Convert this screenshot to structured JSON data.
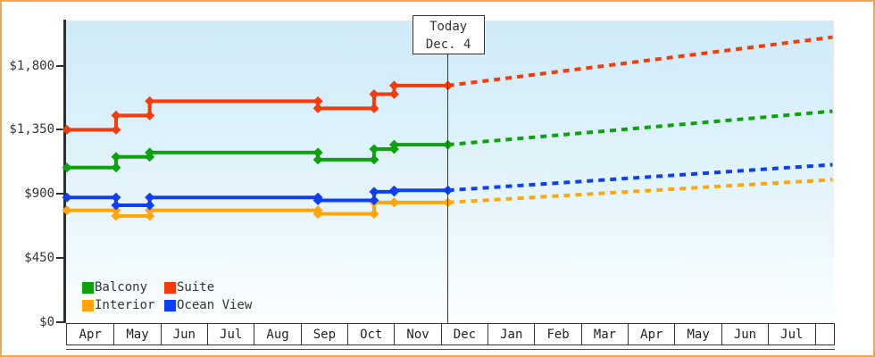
{
  "today_annotation": {
    "title": "Today",
    "subtitle": "Dec. 4"
  },
  "colors": {
    "balcony": "#0da20d",
    "suite": "#f63b0b",
    "interior": "#ffa60d",
    "ocean_view": "#0d3ef2",
    "frame_border": "#efa55e",
    "axis": "#2e2e2e",
    "plot_bg_top": "#cfeaf8",
    "plot_bg_bottom": "#fbfeff"
  },
  "chart_data": {
    "type": "line",
    "subtype": "step-after price history with dotted future projection",
    "title": "",
    "xlabel": "",
    "ylabel": "",
    "grid": false,
    "legend_position": "bottom-left",
    "x_unit": "months since Apr 1 (0 = Apr of first year, 8 = Dec 1, 12 = Apr of next year)",
    "x_range_months": 16.38,
    "ylim": [
      0,
      2115
    ],
    "y_ticks": [
      {
        "label": "$0",
        "value": 0
      },
      {
        "label": "$450",
        "value": 450
      },
      {
        "label": "$900",
        "value": 900
      },
      {
        "label": "$1,350",
        "value": 1350
      },
      {
        "label": "$1,800",
        "value": 1800
      }
    ],
    "x_axis_months": [
      "Apr",
      "May",
      "Jun",
      "Jul",
      "Aug",
      "Sep",
      "Oct",
      "Nov",
      "Dec",
      "Jan",
      "Feb",
      "Mar",
      "Apr",
      "May",
      "Jun",
      "Jul"
    ],
    "today_marker": {
      "x": 8.15,
      "title": "Today",
      "subtitle": "Dec. 4"
    },
    "series": [
      {
        "name": "Balcony",
        "color": "#0da20d",
        "steps": [
          [
            0,
            1085
          ],
          [
            1.05,
            1160
          ],
          [
            1.77,
            1190
          ],
          [
            5.37,
            1140
          ],
          [
            6.57,
            1215
          ],
          [
            7.0,
            1245
          ]
        ],
        "value_today": 1245,
        "projected_value_at_right_edge": 1480
      },
      {
        "name": "Suite",
        "color": "#f63b0b",
        "steps": [
          [
            0,
            1350
          ],
          [
            1.05,
            1450
          ],
          [
            1.77,
            1550
          ],
          [
            5.37,
            1500
          ],
          [
            6.57,
            1600
          ],
          [
            7.0,
            1660
          ]
        ],
        "value_today": 1660,
        "projected_value_at_right_edge": 2000
      },
      {
        "name": "Interior",
        "color": "#ffa60d",
        "steps": [
          [
            0,
            785
          ],
          [
            1.05,
            745
          ],
          [
            1.77,
            785
          ],
          [
            5.37,
            760
          ],
          [
            6.57,
            840
          ],
          [
            7.0,
            840
          ]
        ],
        "value_today": 840,
        "projected_value_at_right_edge": 1000
      },
      {
        "name": "Ocean View",
        "color": "#0d3ef2",
        "steps": [
          [
            0,
            875
          ],
          [
            1.05,
            820
          ],
          [
            1.77,
            875
          ],
          [
            5.37,
            855
          ],
          [
            6.57,
            915
          ],
          [
            7.0,
            925
          ]
        ],
        "value_today": 925,
        "projected_value_at_right_edge": 1105
      }
    ],
    "legend_order": [
      "Balcony",
      "Suite",
      "Interior",
      "Ocean View"
    ]
  }
}
